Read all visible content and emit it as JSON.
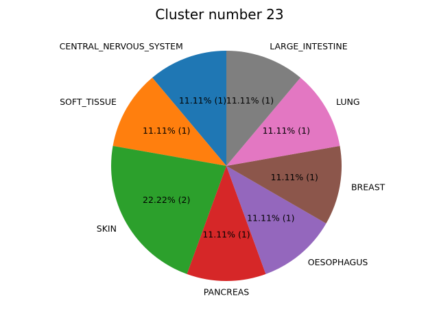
{
  "chart_data": {
    "type": "pie",
    "title": "Cluster number 23",
    "slices": [
      {
        "label": "CENTRAL_NERVOUS_SYSTEM",
        "value": 1,
        "pct_label": "11.11%  (1)",
        "color": "#1f77b4"
      },
      {
        "label": "SOFT_TISSUE",
        "value": 1,
        "pct_label": "11.11%  (1)",
        "color": "#ff7f0e"
      },
      {
        "label": "SKIN",
        "value": 2,
        "pct_label": "22.22%  (2)",
        "color": "#2ca02c"
      },
      {
        "label": "PANCREAS",
        "value": 1,
        "pct_label": "11.11%  (1)",
        "color": "#d62728"
      },
      {
        "label": "OESOPHAGUS",
        "value": 1,
        "pct_label": "11.11%  (1)",
        "color": "#9467bd"
      },
      {
        "label": "BREAST",
        "value": 1,
        "pct_label": "11.11%  (1)",
        "color": "#8c564b"
      },
      {
        "label": "LUNG",
        "value": 1,
        "pct_label": "11.11%  (1)",
        "color": "#e377c2"
      },
      {
        "label": "LARGE_INTESTINE",
        "value": 1,
        "pct_label": "11.11%  (1)",
        "color": "#7f7f7f"
      }
    ],
    "start_angle_deg": 90,
    "direction": "counterclockwise",
    "legend": "none"
  }
}
